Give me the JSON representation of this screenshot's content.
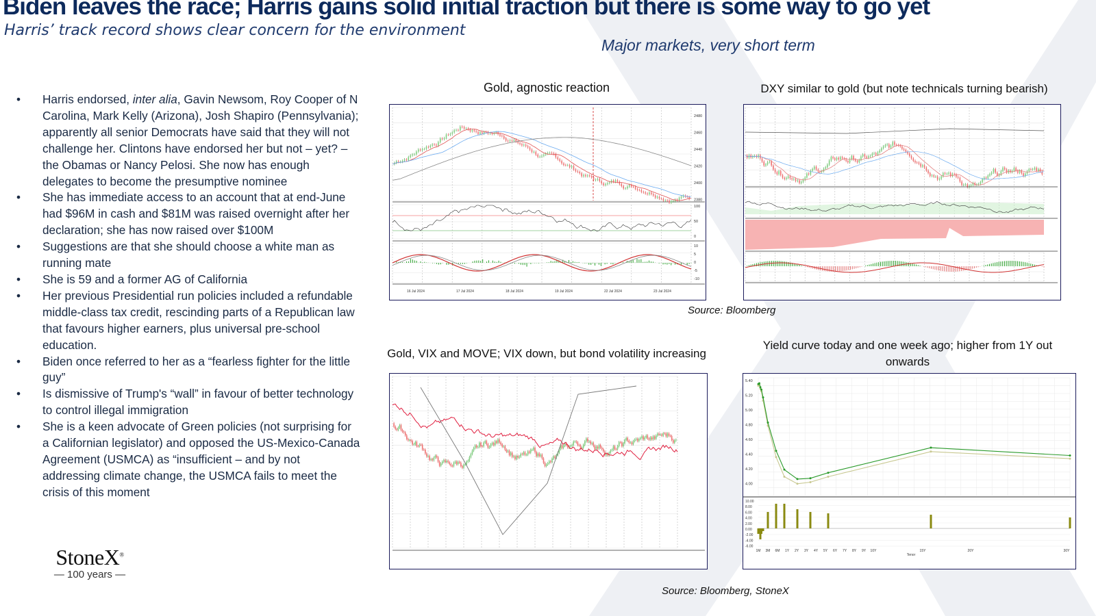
{
  "title": "Biden leaves the race; Harris gains solid initial traction but there is some way to go yet",
  "subtitle": "Harris’ track record shows clear concern for the environment",
  "section_heading": "Major markets, very short term",
  "bullets": [
    {
      "pre": "Harris endorsed, ",
      "em": "inter alia",
      "post": ",  Gavin Newsom, Roy Cooper of N Carolina, Mark Kelly (Arizona), Josh Shapiro (Pennsylvania); apparently all senior Democrats have said that they will not challenge her.  Clintons have endorsed her but not – yet? – the Obamas or Nancy Pelosi.  She now has enough delegates to become the presumptive nominee"
    },
    {
      "pre": "She has immediate access to an account that at end-June had $96M in cash and $81M was raised overnight after her declaration; she has now raised over $100M",
      "em": "",
      "post": ""
    },
    {
      "pre": "Suggestions are that she should choose a white man as running mate",
      "em": "",
      "post": ""
    },
    {
      "pre": "She is 59 and a former AG of California",
      "em": "",
      "post": ""
    },
    {
      "pre": "Her previous Presidential run policies included a refundable middle-class tax credit, rescinding parts of a Republican law that favours higher earners, plus universal pre-school education.",
      "em": "",
      "post": ""
    },
    {
      "pre": "Biden once referred to her as a “fearless fighter for the little guy”",
      "em": "",
      "post": ""
    },
    {
      "pre": "Is dismissive of Trump's “wall” in favour of better technology to control illegal immigration",
      "em": "",
      "post": ""
    },
    {
      "pre": "She is a keen advocate of Green policies (not surprising for a Californian legislator)  and opposed the US-Mexico-Canada Agreement (USMCA) as “insufficient – and by not addressing climate change, the USMCA fails to meet the crisis of this moment",
      "em": "",
      "post": ""
    }
  ],
  "logo": {
    "name": "StoneX",
    "mark": "®",
    "years": "— 100 years —"
  },
  "charts": {
    "gold": {
      "title": "Gold, agnostic reaction",
      "y_ticks": [
        "2480",
        "2460",
        "2440",
        "2420",
        "2400",
        "2380"
      ],
      "rsi_ticks": [
        "100",
        "50",
        "0"
      ],
      "macd_ticks": [
        "10",
        "5",
        "0",
        "-5",
        "-10"
      ],
      "dates": [
        "16 Jul 2024",
        "17 Jul 2024",
        "18 Jul 2024",
        "19 Jul 2024",
        "22 Jul 2024",
        "23 Jul 2024"
      ]
    },
    "dxy": {
      "title": "DXY similar to gold (but note technicals turning bearish)"
    },
    "vix": {
      "title": "Gold, VIX and MOVE; VIX down, but bond volatility increasing"
    },
    "yield": {
      "title": "Yield curve today and one week ago; higher from 1Y out onwards",
      "y_ticks": [
        "5.40",
        "5.20",
        "5.00",
        "4.80",
        "4.60",
        "4.40",
        "4.20",
        "4.00"
      ],
      "bar_ticks": [
        "10.00",
        "8.00",
        "6.00",
        "4.00",
        "2.00",
        "0.00",
        "-2.00",
        "-4.00",
        "-6.00"
      ],
      "x_labels": [
        "1M",
        "3M",
        "6M",
        "1Y",
        "2Y",
        "3Y",
        "4Y",
        "5Y",
        "6Y",
        "7Y",
        "8Y",
        "9Y",
        "10Y",
        "15Y",
        "20Y",
        "30Y"
      ],
      "xlabel": "Tenor"
    }
  },
  "chart_data": [
    {
      "type": "line",
      "title": "Yield curve today and one week ago; higher from 1Y out onwards",
      "categories": [
        "1M",
        "2M",
        "3M",
        "4M",
        "6M",
        "1Y",
        "2Y",
        "3Y",
        "5Y",
        "7Y",
        "10Y",
        "20Y",
        "30Y"
      ],
      "series": [
        {
          "values": [
            5.37,
            5.38,
            5.33,
            5.3,
            5.2,
            4.88,
            4.52,
            4.28,
            4.16,
            4.17,
            4.24,
            4.56,
            4.46
          ]
        },
        {
          "values": [
            5.35,
            5.36,
            5.31,
            5.28,
            5.16,
            4.84,
            4.44,
            4.19,
            4.1,
            4.12,
            4.19,
            4.51,
            4.42
          ]
        }
      ],
      "ylim": [
        4.0,
        5.45
      ],
      "xlabel": "Tenor",
      "bars": [
        -2.0,
        -0.6,
        -4.0,
        -2.0,
        -1.0,
        6.0,
        9.0,
        9.0,
        7.0,
        6.0,
        5.5,
        5.0,
        4.0
      ]
    }
  ],
  "sources": {
    "top": "Source: Bloomberg",
    "bottom": "Source: Bloomberg, StoneX"
  }
}
